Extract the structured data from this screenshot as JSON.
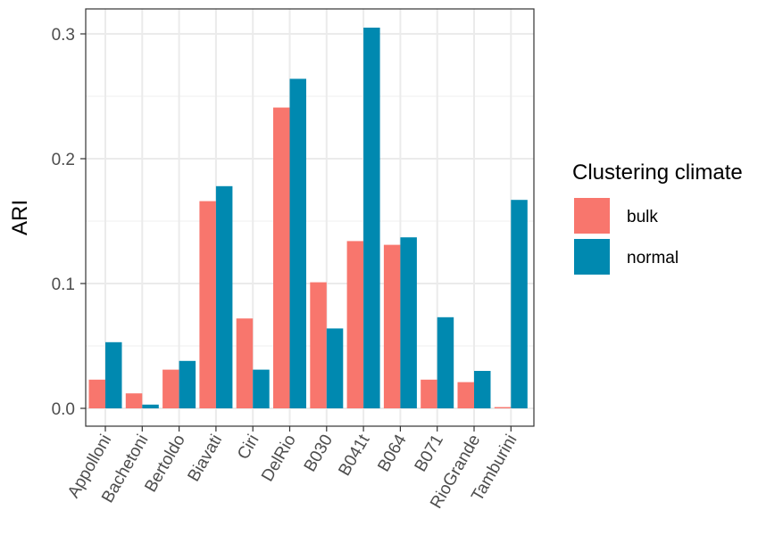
{
  "chart_data": {
    "type": "bar",
    "ylabel": "ARI",
    "xlabel": "",
    "ylim": [
      0,
      0.32
    ],
    "yticks": [
      0.0,
      0.1,
      0.2,
      0.3
    ],
    "ytick_labels": [
      "0.0",
      "0.1",
      "0.2",
      "0.3"
    ],
    "grid": true,
    "legend_position": "right",
    "legend_title": "Clustering climate",
    "categories": [
      "Appolloni",
      "Bachetoni",
      "Bertoldo",
      "Biavati",
      "Ciri",
      "DelRio",
      "B030",
      "B041t",
      "B064",
      "B071",
      "RioGrande",
      "Tamburini"
    ],
    "series": [
      {
        "name": "bulk",
        "color": "#F8766D",
        "values": [
          0.023,
          0.012,
          0.031,
          0.166,
          0.072,
          0.241,
          0.101,
          0.134,
          0.131,
          0.023,
          0.021,
          0.001
        ]
      },
      {
        "name": "normal",
        "color": "#0089B0",
        "values": [
          0.053,
          0.003,
          0.038,
          0.178,
          0.031,
          0.264,
          0.064,
          0.305,
          0.137,
          0.073,
          0.03,
          0.167
        ]
      }
    ]
  }
}
